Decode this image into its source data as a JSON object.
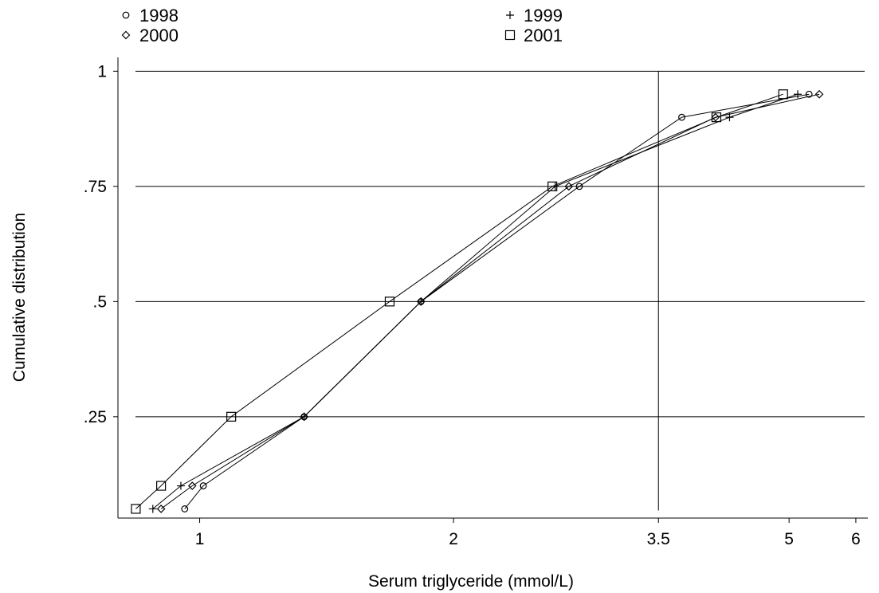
{
  "chart_data": {
    "type": "line",
    "title": "",
    "xlabel": "Serum triglyceride (mmol/L)",
    "ylabel": "Cumulative distribution",
    "x_scale": "log",
    "xlim": [
      0.8,
      6.2
    ],
    "ylim": [
      0.03,
      1.03
    ],
    "x_ticks": [
      1,
      2,
      3.5,
      5,
      6
    ],
    "x_tick_labels": [
      "1",
      "2",
      "3.5",
      "5",
      "6"
    ],
    "y_ticks": [
      0.25,
      0.5,
      0.75,
      1
    ],
    "y_tick_labels": [
      ".25",
      ".5",
      ".75",
      "1"
    ],
    "grid": "horizontal at y ticks",
    "reference_line_x": 3.5,
    "legend_position": "top",
    "series": [
      {
        "name": "1998",
        "marker": "circle",
        "points": [
          [
            0.96,
            0.05
          ],
          [
            1.01,
            0.1
          ],
          [
            1.33,
            0.25
          ],
          [
            1.83,
            0.5
          ],
          [
            2.82,
            0.75
          ],
          [
            3.73,
            0.9
          ],
          [
            5.28,
            0.95
          ]
        ]
      },
      {
        "name": "1999",
        "marker": "plus",
        "points": [
          [
            0.88,
            0.05
          ],
          [
            0.95,
            0.1
          ],
          [
            1.33,
            0.25
          ],
          [
            1.83,
            0.5
          ],
          [
            2.64,
            0.75
          ],
          [
            4.25,
            0.9
          ],
          [
            5.12,
            0.95
          ]
        ]
      },
      {
        "name": "2000",
        "marker": "diamond",
        "points": [
          [
            0.9,
            0.05
          ],
          [
            0.98,
            0.1
          ],
          [
            1.33,
            0.25
          ],
          [
            1.83,
            0.5
          ],
          [
            2.74,
            0.75
          ],
          [
            4.09,
            0.9
          ],
          [
            5.43,
            0.95
          ]
        ]
      },
      {
        "name": "2001",
        "marker": "square",
        "points": [
          [
            0.84,
            0.05
          ],
          [
            0.9,
            0.1
          ],
          [
            1.09,
            0.25
          ],
          [
            1.68,
            0.5
          ],
          [
            2.62,
            0.75
          ],
          [
            4.1,
            0.9
          ],
          [
            4.92,
            0.95
          ]
        ]
      }
    ],
    "colors": {
      "line": "#000000",
      "background": "#ffffff"
    }
  }
}
